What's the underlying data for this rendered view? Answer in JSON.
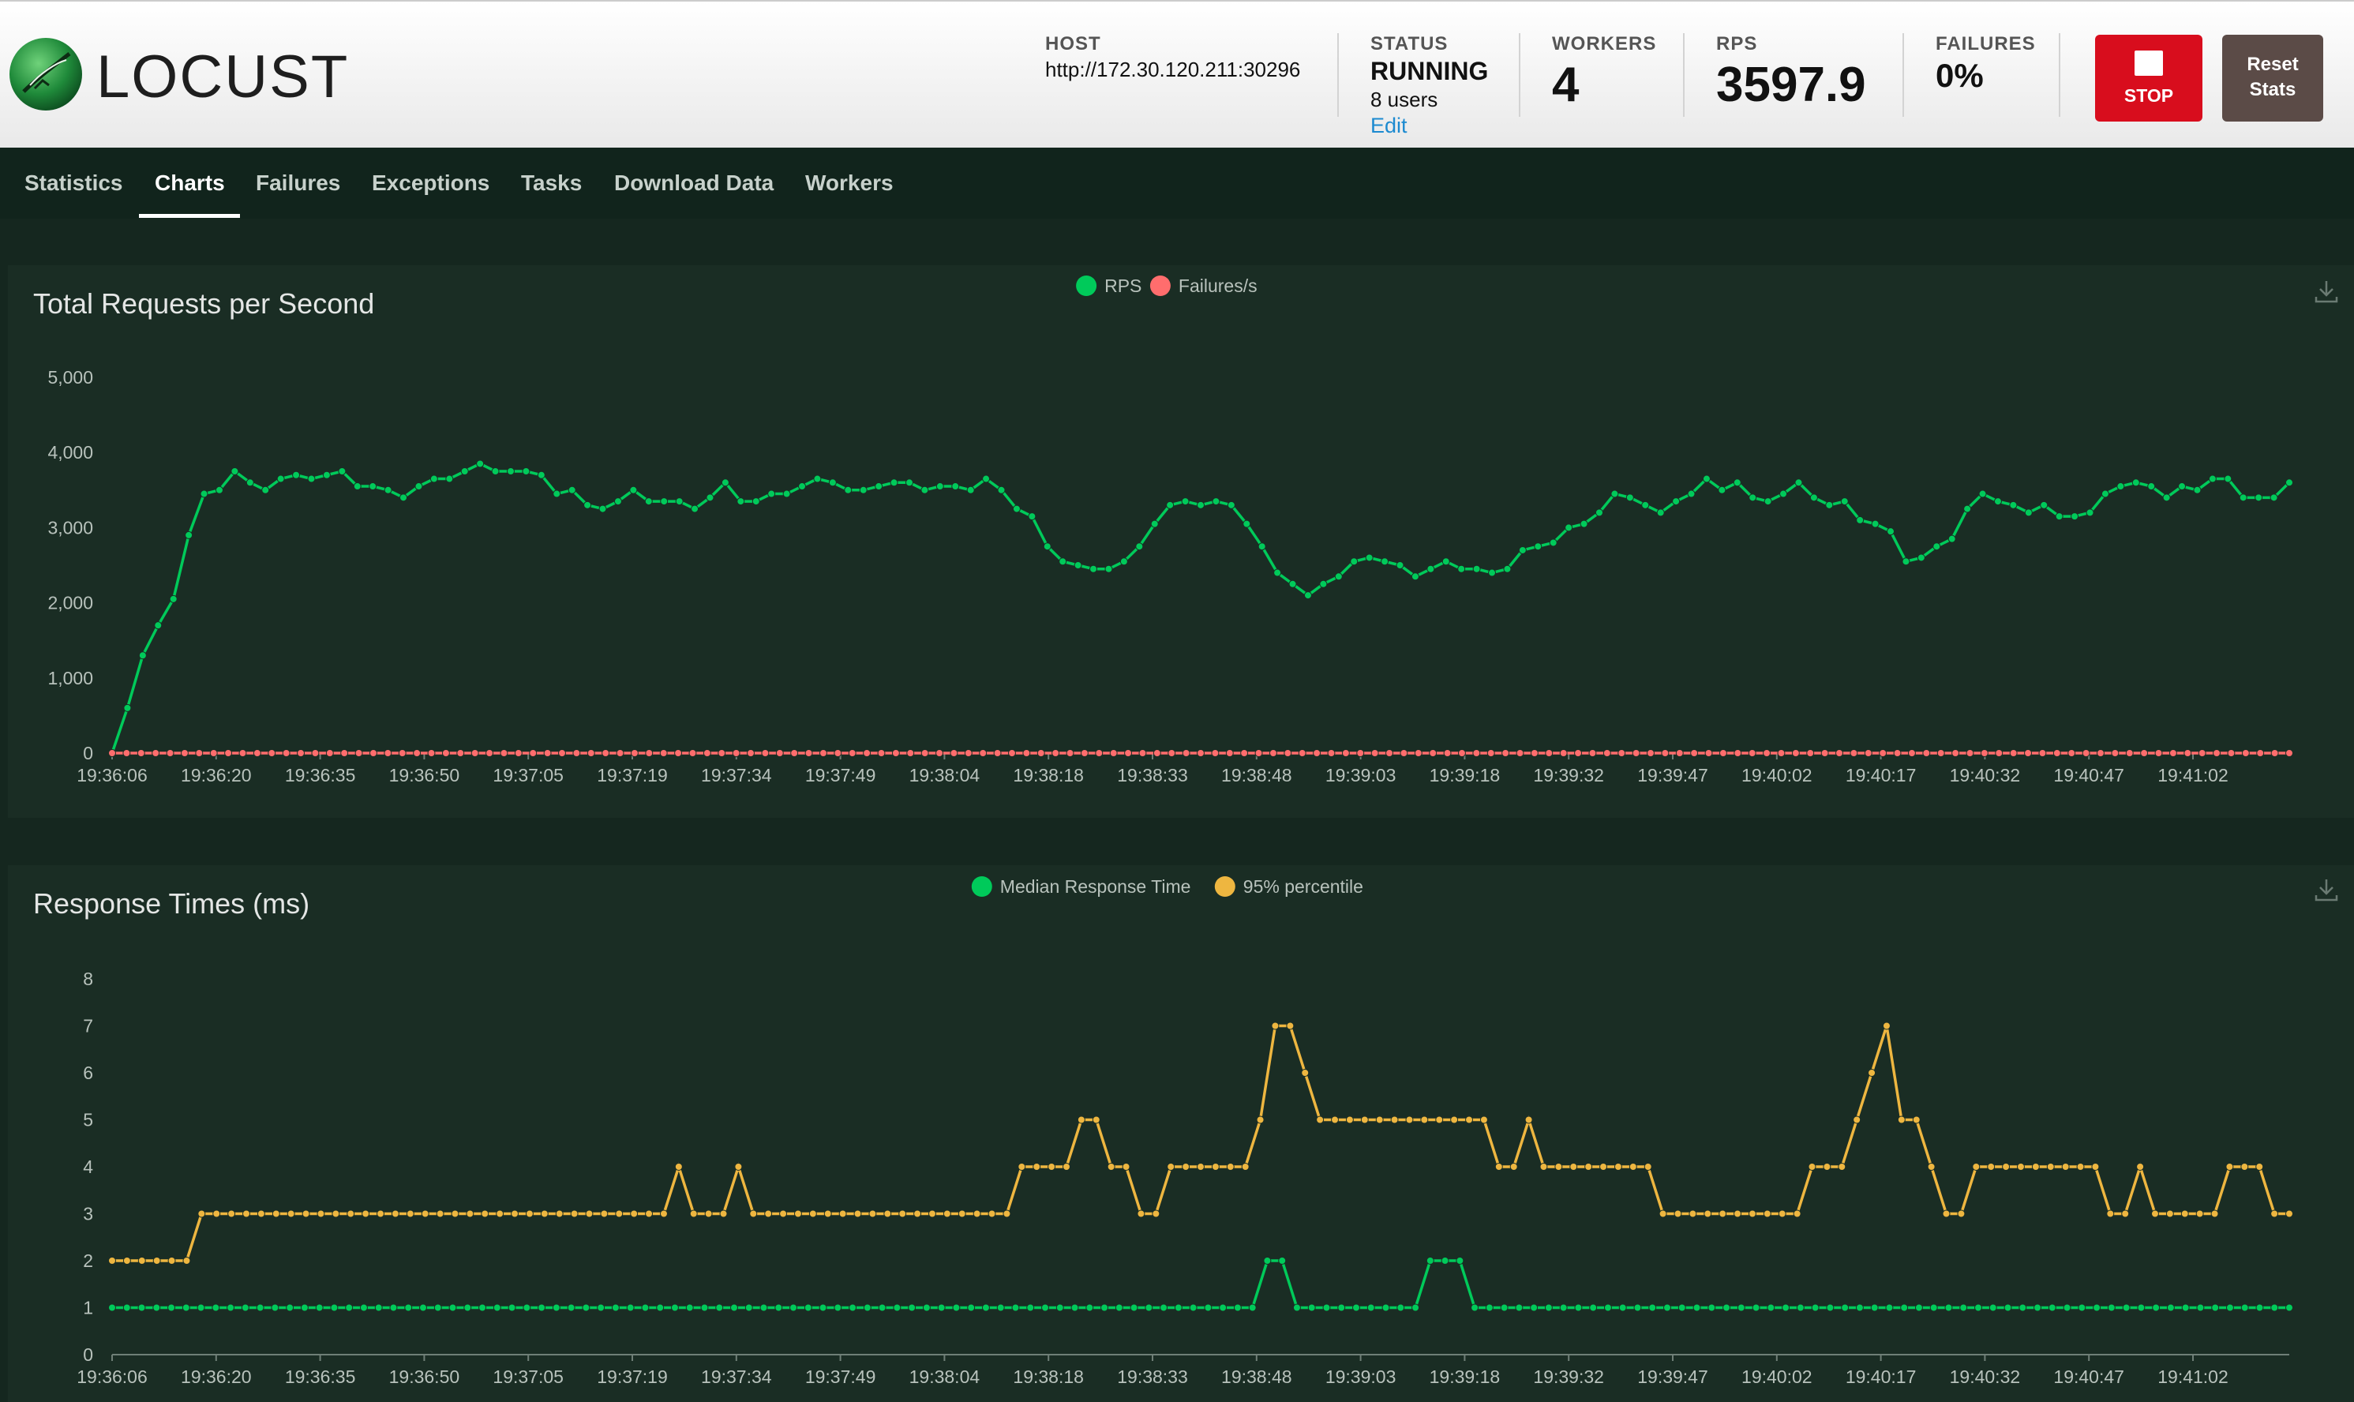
{
  "app": {
    "name": "LOCUST"
  },
  "header": {
    "host_label": "HOST",
    "host_value": "http://172.30.120.211:30296",
    "status_label": "STATUS",
    "status_value": "RUNNING",
    "users_value": "8 users",
    "edit_label": "Edit",
    "workers_label": "WORKERS",
    "workers_value": "4",
    "rps_label": "RPS",
    "rps_value": "3597.9",
    "failures_label": "FAILURES",
    "failures_value": "0%",
    "stop_label": "STOP",
    "reset_label_line1": "Reset",
    "reset_label_line2": "Stats"
  },
  "nav": {
    "tabs": [
      "Statistics",
      "Charts",
      "Failures",
      "Exceptions",
      "Tasks",
      "Download Data",
      "Workers"
    ],
    "active": "Charts"
  },
  "colors": {
    "green": "#00ca5a",
    "red": "#ff6d6d",
    "yellow": "#eeb640",
    "panel_bg": "#1a2d24"
  },
  "charts": {
    "rps_title": "Total Requests per Second",
    "rt_title": "Response Times (ms)"
  },
  "chart_data": [
    {
      "type": "line",
      "title": "Total Requests per Second",
      "legend_position": "top-center",
      "ylim": [
        0,
        5000
      ],
      "yticks": [
        "0",
        "1,000",
        "2,000",
        "3,000",
        "4,000",
        "5,000"
      ],
      "xticks": [
        "19:36:06",
        "19:36:20",
        "19:36:35",
        "19:36:50",
        "19:37:05",
        "19:37:19",
        "19:37:34",
        "19:37:49",
        "19:38:04",
        "19:38:18",
        "19:38:33",
        "19:38:48",
        "19:39:03",
        "19:39:18",
        "19:39:32",
        "19:39:47",
        "19:40:02",
        "19:40:17",
        "19:40:32",
        "19:40:47",
        "19:41:02"
      ],
      "series": [
        {
          "name": "RPS",
          "color": "#00ca5a",
          "values": [
            0,
            600,
            1300,
            1700,
            2050,
            2900,
            3450,
            3500,
            3750,
            3600,
            3500,
            3650,
            3700,
            3650,
            3700,
            3750,
            3550,
            3550,
            3500,
            3400,
            3550,
            3650,
            3650,
            3750,
            3850,
            3750,
            3750,
            3750,
            3700,
            3450,
            3500,
            3300,
            3250,
            3350,
            3500,
            3350,
            3350,
            3350,
            3250,
            3400,
            3600,
            3350,
            3350,
            3450,
            3450,
            3550,
            3650,
            3600,
            3500,
            3500,
            3550,
            3600,
            3600,
            3500,
            3550,
            3550,
            3500,
            3650,
            3500,
            3250,
            3150,
            2750,
            2550,
            2500,
            2450,
            2450,
            2550,
            2750,
            3050,
            3300,
            3350,
            3300,
            3350,
            3300,
            3050,
            2750,
            2400,
            2250,
            2100,
            2250,
            2350,
            2550,
            2600,
            2550,
            2500,
            2350,
            2450,
            2550,
            2450,
            2450,
            2400,
            2450,
            2700,
            2750,
            2800,
            3000,
            3050,
            3200,
            3450,
            3400,
            3300,
            3200,
            3350,
            3450,
            3650,
            3500,
            3600,
            3400,
            3350,
            3450,
            3600,
            3400,
            3300,
            3350,
            3100,
            3050,
            2950,
            2550,
            2600,
            2750,
            2850,
            3250,
            3450,
            3350,
            3300,
            3200,
            3300,
            3150,
            3150,
            3200,
            3450,
            3550,
            3600,
            3550,
            3400,
            3550,
            3500,
            3650,
            3650,
            3400,
            3400,
            3400,
            3600
          ]
        },
        {
          "name": "Failures/s",
          "color": "#ff6d6d",
          "values": [
            0,
            0,
            0,
            0,
            0,
            0,
            0,
            0,
            0,
            0,
            0,
            0,
            0,
            0,
            0,
            0,
            0,
            0,
            0,
            0,
            0,
            0,
            0,
            0,
            0,
            0,
            0,
            0,
            0,
            0,
            0,
            0,
            0,
            0,
            0,
            0,
            0,
            0,
            0,
            0,
            0,
            0,
            0,
            0,
            0,
            0,
            0,
            0,
            0,
            0,
            0,
            0,
            0,
            0,
            0,
            0,
            0,
            0,
            0,
            0,
            0,
            0,
            0,
            0,
            0,
            0,
            0,
            0,
            0,
            0,
            0,
            0,
            0,
            0,
            0,
            0,
            0,
            0,
            0,
            0,
            0,
            0,
            0,
            0,
            0,
            0,
            0,
            0,
            0,
            0,
            0,
            0,
            0,
            0,
            0,
            0,
            0,
            0,
            0,
            0,
            0,
            0,
            0,
            0,
            0,
            0,
            0,
            0,
            0,
            0,
            0,
            0,
            0,
            0,
            0,
            0,
            0,
            0,
            0,
            0,
            0,
            0,
            0,
            0,
            0,
            0,
            0,
            0,
            0,
            0,
            0,
            0,
            0,
            0,
            0,
            0,
            0,
            0,
            0,
            0,
            0,
            0,
            0,
            0,
            0,
            0,
            0,
            0,
            0,
            0,
            0
          ]
        }
      ]
    },
    {
      "type": "line",
      "title": "Response Times (ms)",
      "legend_position": "top-center",
      "ylim": [
        0,
        8
      ],
      "yticks": [
        "0",
        "1",
        "2",
        "3",
        "4",
        "5",
        "6",
        "7",
        "8"
      ],
      "xticks": [
        "19:36:06",
        "19:36:20",
        "19:36:35",
        "19:36:50",
        "19:37:05",
        "19:37:19",
        "19:37:34",
        "19:37:49",
        "19:38:04",
        "19:38:18",
        "19:38:33",
        "19:38:48",
        "19:39:03",
        "19:39:18",
        "19:39:32",
        "19:39:47",
        "19:40:02",
        "19:40:17",
        "19:40:32",
        "19:40:47",
        "19:41:02"
      ],
      "series": [
        {
          "name": "Median Response Time",
          "color": "#00ca5a",
          "values": [
            1,
            1,
            1,
            1,
            1,
            1,
            1,
            1,
            1,
            1,
            1,
            1,
            1,
            1,
            1,
            1,
            1,
            1,
            1,
            1,
            1,
            1,
            1,
            1,
            1,
            1,
            1,
            1,
            1,
            1,
            1,
            1,
            1,
            1,
            1,
            1,
            1,
            1,
            1,
            1,
            1,
            1,
            1,
            1,
            1,
            1,
            1,
            1,
            1,
            1,
            1,
            1,
            1,
            1,
            1,
            1,
            1,
            1,
            1,
            1,
            1,
            1,
            1,
            1,
            1,
            1,
            1,
            1,
            1,
            1,
            1,
            1,
            1,
            1,
            1,
            1,
            1,
            1,
            2,
            2,
            1,
            1,
            1,
            1,
            1,
            1,
            1,
            1,
            1,
            2,
            2,
            2,
            1,
            1,
            1,
            1,
            1,
            1,
            1,
            1,
            1,
            1,
            1,
            1,
            1,
            1,
            1,
            1,
            1,
            1,
            1,
            1,
            1,
            1,
            1,
            1,
            1,
            1,
            1,
            1,
            1,
            1,
            1,
            1,
            1,
            1,
            1,
            1,
            1,
            1,
            1,
            1,
            1,
            1,
            1,
            1,
            1,
            1,
            1,
            1,
            1,
            1,
            1,
            1,
            1,
            1,
            1,
            1
          ]
        },
        {
          "name": "95% percentile",
          "color": "#eeb640",
          "values": [
            2,
            2,
            2,
            2,
            2,
            2,
            3,
            3,
            3,
            3,
            3,
            3,
            3,
            3,
            3,
            3,
            3,
            3,
            3,
            3,
            3,
            3,
            3,
            3,
            3,
            3,
            3,
            3,
            3,
            3,
            3,
            3,
            3,
            3,
            3,
            3,
            3,
            3,
            4,
            3,
            3,
            3,
            4,
            3,
            3,
            3,
            3,
            3,
            3,
            3,
            3,
            3,
            3,
            3,
            3,
            3,
            3,
            3,
            3,
            3,
            3,
            4,
            4,
            4,
            4,
            5,
            5,
            4,
            4,
            3,
            3,
            4,
            4,
            4,
            4,
            4,
            4,
            5,
            7,
            7,
            6,
            5,
            5,
            5,
            5,
            5,
            5,
            5,
            5,
            5,
            5,
            5,
            5,
            4,
            4,
            5,
            4,
            4,
            4,
            4,
            4,
            4,
            4,
            4,
            3,
            3,
            3,
            3,
            3,
            3,
            3,
            3,
            3,
            3,
            4,
            4,
            4,
            5,
            6,
            7,
            5,
            5,
            4,
            3,
            3,
            4,
            4,
            4,
            4,
            4,
            4,
            4,
            4,
            4,
            3,
            3,
            4,
            3,
            3,
            3,
            3,
            3,
            4,
            4,
            4,
            3,
            3
          ]
        }
      ]
    }
  ]
}
